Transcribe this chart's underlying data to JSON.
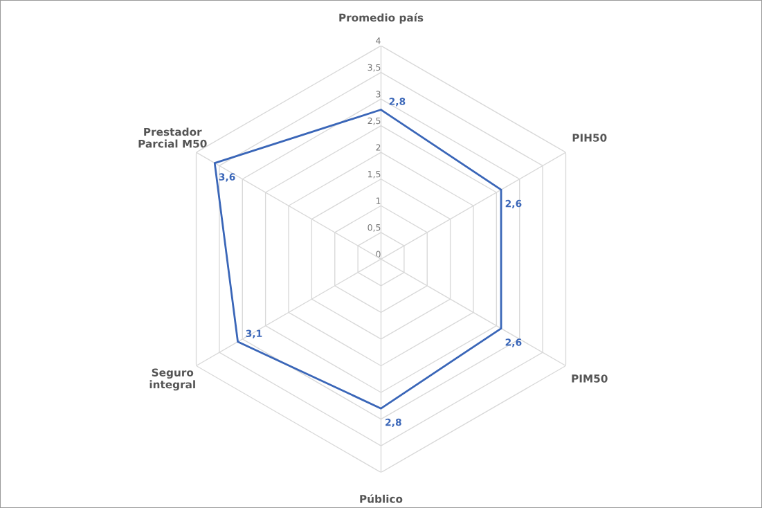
{
  "chart_data": {
    "type": "radar",
    "categories": [
      "Promedio país",
      "PIH50",
      "PIM50",
      "Público",
      "Seguro\nintegral",
      "Prestador\nParcial M50"
    ],
    "series": [
      {
        "color": "#3a66b8",
        "values": [
          2.8,
          2.6,
          2.6,
          2.8,
          3.1,
          3.6
        ],
        "value_labels": [
          "2,8",
          "2,6",
          "2,6",
          "2,8",
          "3,1",
          "3,6"
        ]
      }
    ],
    "ylim": [
      0,
      4
    ],
    "yticks": [
      0,
      {
        "value": 0.5,
        "label": "0,5"
      },
      1,
      {
        "value": 1.5,
        "label": "1,5"
      },
      2,
      {
        "value": 2.5,
        "label": "2,5"
      },
      3,
      {
        "value": 3.5,
        "label": "3,5"
      },
      4
    ],
    "grid": true,
    "marker": "none",
    "line_style": "solid"
  }
}
